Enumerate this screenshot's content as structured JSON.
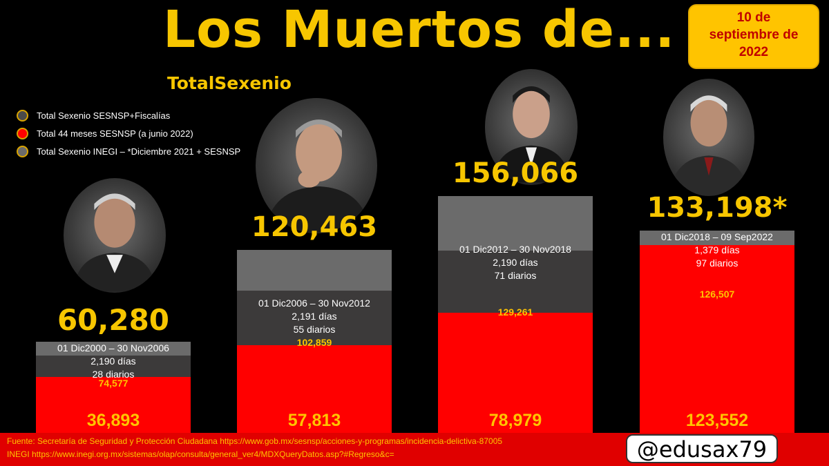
{
  "title": "Los Muertos de...",
  "date": [
    "10 de",
    "septiembre de",
    "2022"
  ],
  "subtitle": "TotalSexenio",
  "legend": [
    {
      "label": "Total Sexenio SESNSP+Fiscalías",
      "color": "#4a4a4a"
    },
    {
      "label": "Total 44 meses SESNSP (a junio 2022)",
      "color": "#ff0000"
    },
    {
      "label": "Total Sexenio INEGI – *Diciembre 2021 + SESNSP",
      "color": "#6b6b6b"
    }
  ],
  "chart_data": {
    "type": "bar",
    "title": "Los Muertos de...",
    "categories": [
      "01 Dic2000 – 30 Nov2006",
      "01 Dic2006 – 30 Nov2012",
      "01 Dic2012 – 30 Nov2018",
      "01 Dic2018 – 09 Sep2022"
    ],
    "series": [
      {
        "name": "Total Sexenio INEGI – *Diciembre 2021 + SESNSP",
        "values": [
          60280,
          120463,
          156066,
          133198
        ],
        "labels": [
          "60,280",
          "120,463",
          "156,066",
          "133,198*"
        ]
      },
      {
        "name": "Total Sexenio SESNSP+Fiscalías",
        "values": [
          74577,
          102859,
          129261,
          126507
        ],
        "labels": [
          "74,577",
          "102,859",
          "129,261",
          "126,507"
        ]
      },
      {
        "name": "Total 44 meses SESNSP (a junio 2022)",
        "values": [
          36893,
          57813,
          78979,
          123552
        ],
        "labels": [
          "36,893",
          "57,813",
          "78,979",
          "123,552"
        ]
      }
    ],
    "days": [
      "2,190 días",
      "2,191 días",
      "2,190 días",
      "1,379 días"
    ],
    "daily": [
      "28 diarios",
      "55 diarios",
      "71 diarios",
      "97 diarios"
    ],
    "ylim": [
      0,
      156066
    ]
  },
  "footer": {
    "source_1": "Fuente: Secretaría de Seguridad y Protección Ciudadana https://www.gob.mx/sesnsp/acciones-y-programas/incidencia-delictiva-87005",
    "source_2": "INEGI https://www.inegi.org.mx/sistemas/olap/consulta/general_ver4/MDXQueryDatos.asp?#Regreso&c=",
    "handle": "@edusax79"
  }
}
